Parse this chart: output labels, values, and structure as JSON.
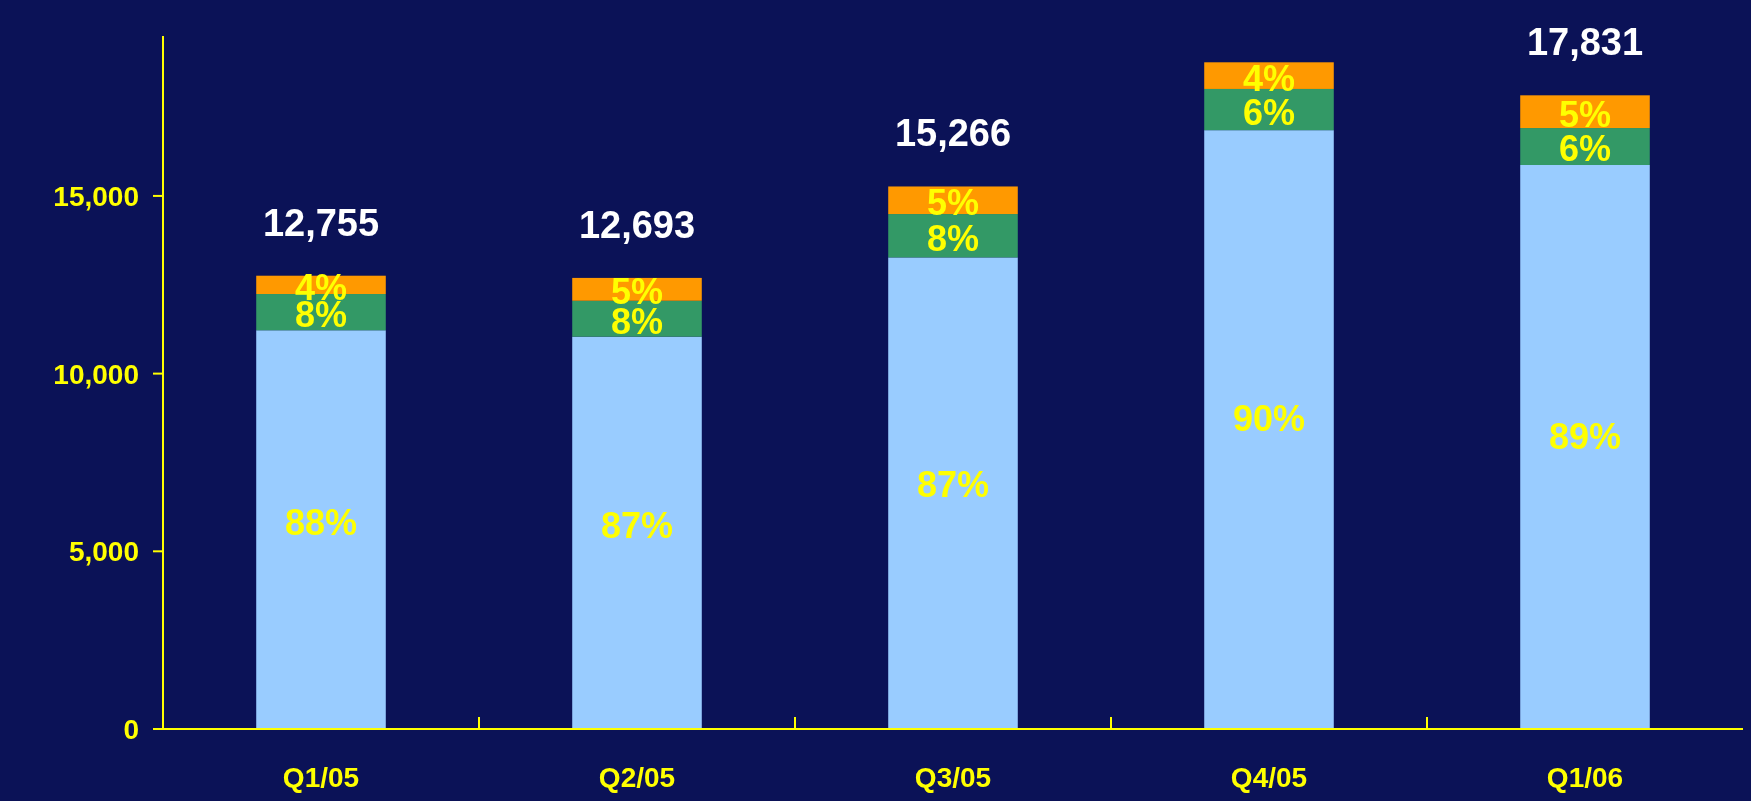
{
  "chart_data": {
    "type": "bar",
    "stacked": true,
    "categories": [
      "Q1/05",
      "Q2/05",
      "Q3/05",
      "Q4/05",
      "Q1/06"
    ],
    "series": [
      {
        "color": "#99ccff",
        "values": [
          11220,
          11040,
          13270,
          16850,
          15870
        ]
      },
      {
        "color": "#339966",
        "values": [
          1020,
          1010,
          1220,
          1160,
          1040
        ]
      },
      {
        "color": "#ff9900",
        "values": [
          515,
          643,
          776,
          750,
          921
        ]
      }
    ],
    "totals": [
      "12,755",
      "12,693",
      "15,266",
      null,
      "17,831"
    ],
    "annotations": [
      "88%",
      "87%",
      "87%",
      "90%",
      "89%",
      "8%",
      "8%",
      "8%",
      "6%",
      "6%",
      "4%",
      "5%",
      "5%",
      "4%",
      "5%"
    ],
    "ylim": [
      0,
      19500
    ],
    "yticks": [
      0,
      {
        "value": 5000,
        "label": "5,000"
      },
      {
        "value": 10000,
        "label": "10,000"
      },
      {
        "value": 15000,
        "label": "15,000"
      }
    ]
  }
}
